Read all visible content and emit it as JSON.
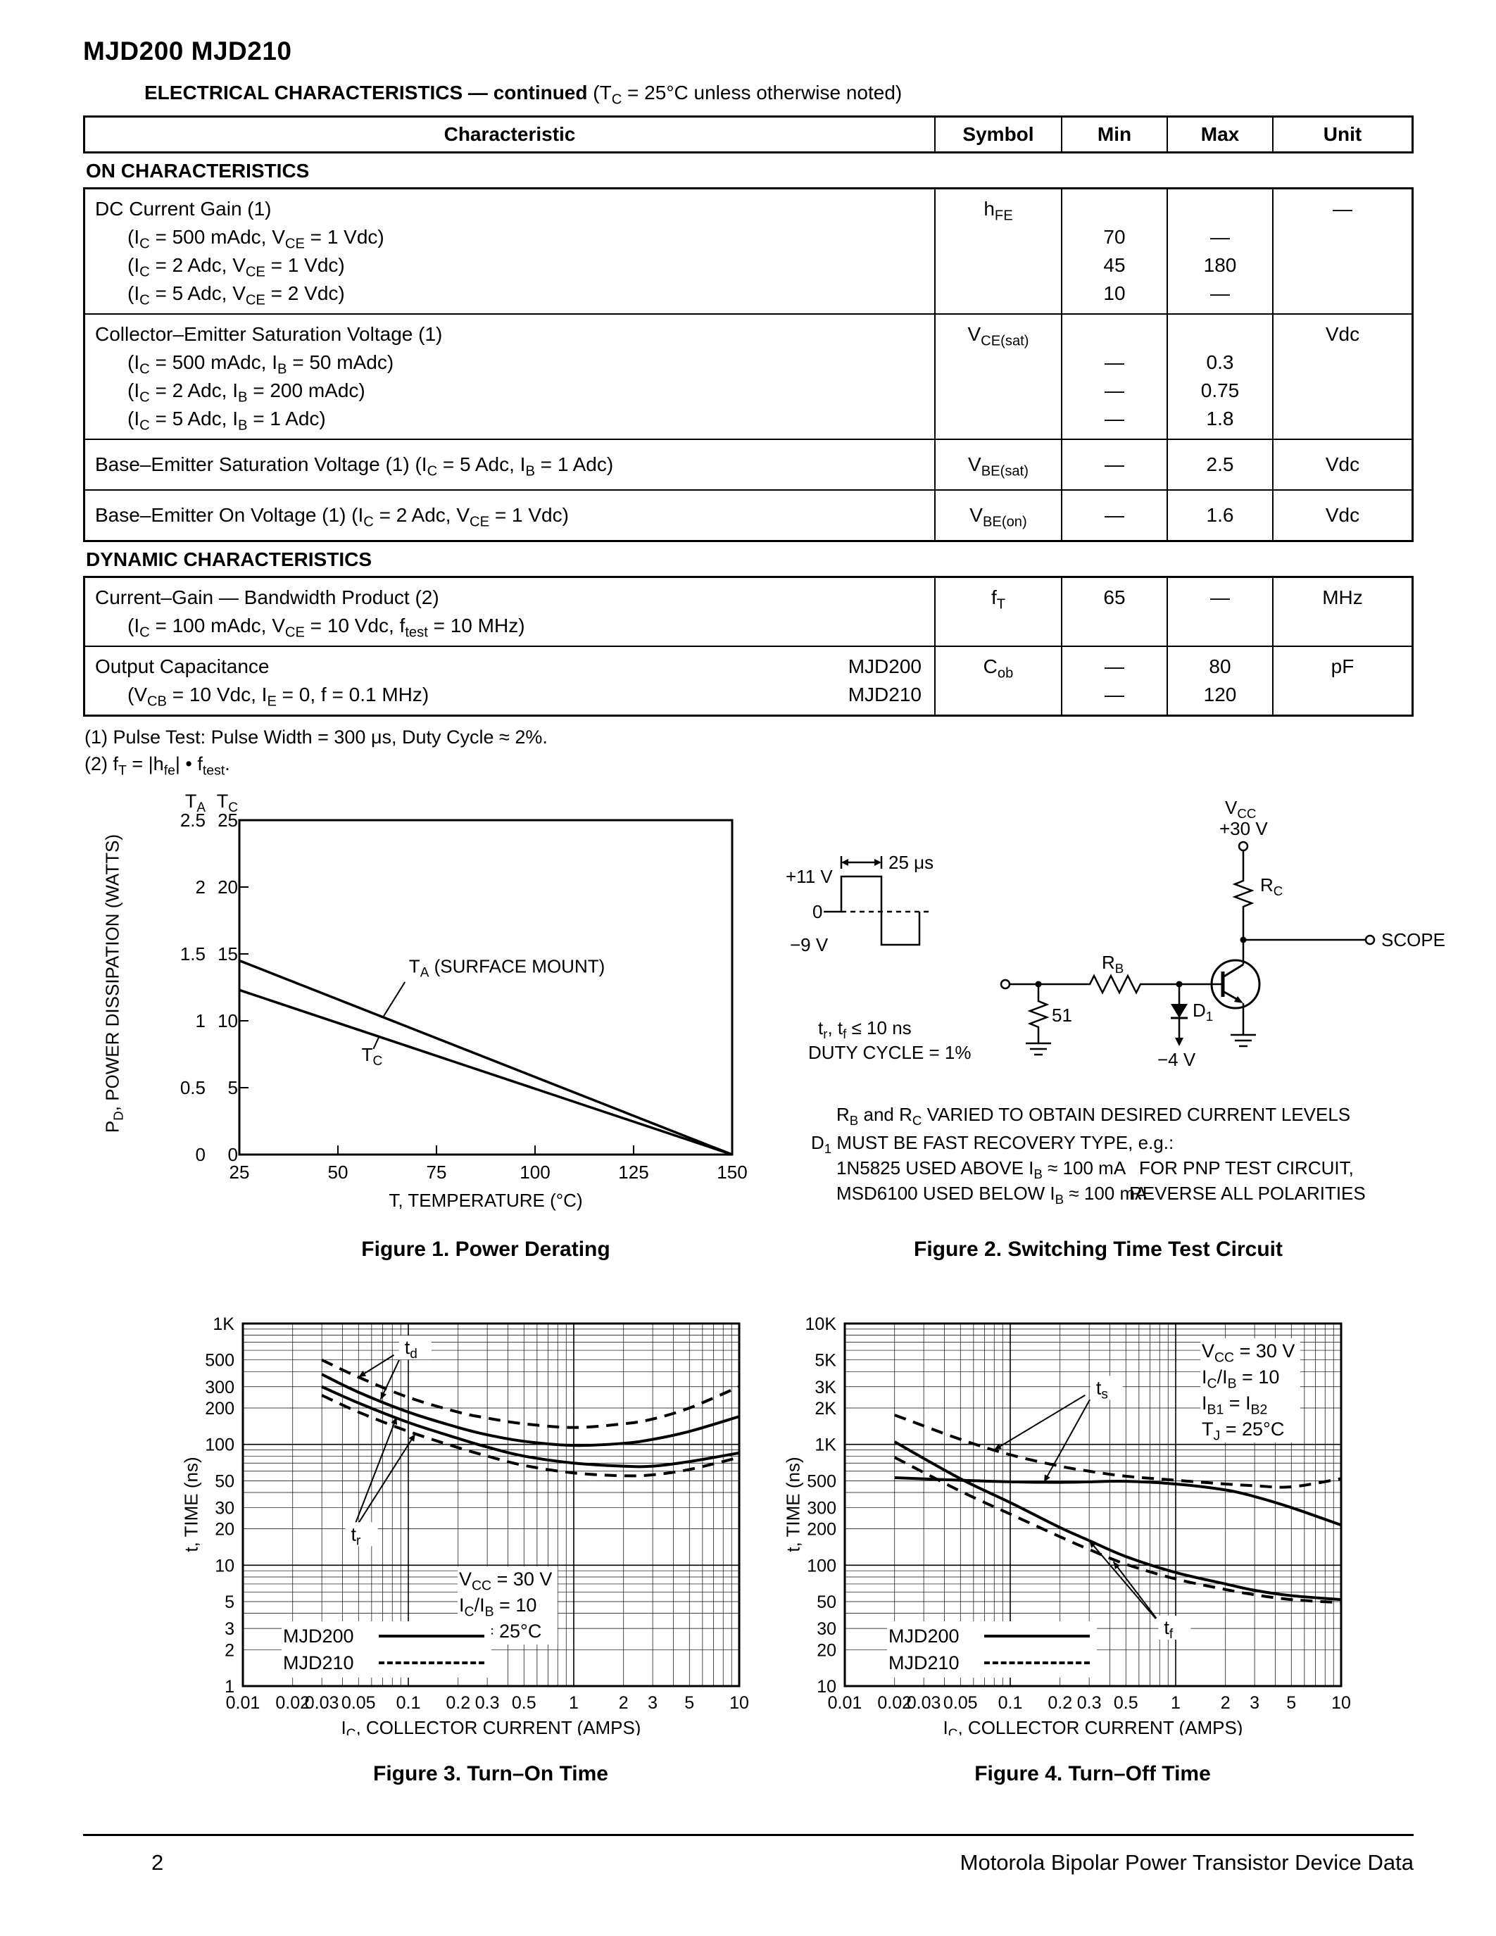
{
  "page": {
    "title": "MJD200 MJD210",
    "footer": {
      "page_number": "2",
      "right_text": "Motorola Bipolar Power Transistor Device Data"
    }
  },
  "electrical": {
    "heading_bold": "ELECTRICAL CHARACTERISTICS — continued",
    "heading_normal": " (T~C~ = 25°C unless otherwise noted)",
    "headers": [
      "Characteristic",
      "Symbol",
      "Min",
      "Max",
      "Unit"
    ],
    "sections": [
      {
        "title": "ON CHARACTERISTICS",
        "rows": [
          {
            "indent": true,
            "char_lines": [
              "DC Current Gain (1)",
              "(I~C~ = 500 mAdc, V~CE~ = 1 Vdc)",
              "(I~C~ = 2 Adc, V~CE~ = 1 Vdc)",
              "(I~C~ = 5 Adc, V~CE~ = 2 Vdc)"
            ],
            "symbol": "h~FE~",
            "min_lines": [
              "",
              "70",
              "45",
              "10"
            ],
            "max_lines": [
              "",
              "—",
              "180",
              "—"
            ],
            "unit_lines": [
              "—"
            ]
          },
          {
            "indent": true,
            "char_lines": [
              "Collector–Emitter Saturation Voltage (1)",
              "(I~C~ = 500 mAdc, I~B~ = 50 mAdc)",
              "(I~C~ = 2 Adc, I~B~ = 200 mAdc)",
              "(I~C~ = 5 Adc, I~B~ = 1 Adc)"
            ],
            "symbol": "V~CE(sat)~",
            "min_lines": [
              "",
              "—",
              "—",
              "—"
            ],
            "max_lines": [
              "",
              "0.3",
              "0.75",
              "1.8"
            ],
            "unit_lines": [
              "Vdc"
            ]
          },
          {
            "single": true,
            "char_lines": [
              "Base–Emitter Saturation Voltage (1) (I~C~ = 5 Adc, I~B~ = 1 Adc)"
            ],
            "symbol": "V~BE(sat)~",
            "min_lines": [
              "—"
            ],
            "max_lines": [
              "2.5"
            ],
            "unit_lines": [
              "Vdc"
            ]
          },
          {
            "single": true,
            "char_lines": [
              "Base–Emitter On Voltage (1) (I~C~ = 2 Adc, V~CE~ = 1 Vdc)"
            ],
            "symbol": "V~BE(on)~",
            "min_lines": [
              "—"
            ],
            "max_lines": [
              "1.6"
            ],
            "unit_lines": [
              "Vdc"
            ]
          }
        ]
      },
      {
        "title": "DYNAMIC CHARACTERISTICS",
        "rows": [
          {
            "indent": true,
            "char_lines": [
              "Current–Gain — Bandwidth Product (2)",
              "(I~C~ = 100 mAdc, V~CE~ = 10 Vdc, f~test~ = 10 MHz)"
            ],
            "symbol": "f~T~",
            "min_lines": [
              "65"
            ],
            "max_lines": [
              "—"
            ],
            "unit_lines": [
              "MHz"
            ]
          },
          {
            "indent": true,
            "char_lines": [
              "Output Capacitance",
              "(V~CB~ = 10 Vdc, I~E~ = 0, f = 0.1 MHz)"
            ],
            "char_right": [
              "MJD200",
              "MJD210"
            ],
            "symbol": "C~ob~",
            "min_lines": [
              "—",
              "—"
            ],
            "max_lines": [
              "80",
              "120"
            ],
            "unit_lines": [
              "pF"
            ]
          }
        ]
      }
    ],
    "footnotes": [
      "(1)  Pulse Test: Pulse Width = 300 μs, Duty Cycle ≈ 2%.",
      "(2)  f~T~ = |h~fe~| • f~test~."
    ]
  },
  "figures": {
    "fig2": {
      "caption": "Figure 2. Switching Time Test Circuit",
      "labels": {
        "plus11v": "+11 V",
        "zero": "0",
        "neg9v": "−9 V",
        "pulse_width": "25 μs",
        "trtf": "t~r~, t~f~ ≤ 10 ns",
        "duty": "DUTY CYCLE = 1%",
        "rb": "R~B~",
        "r51": "51",
        "d1": "D~1~",
        "neg4v": "−4 V",
        "vcc": "V~CC~",
        "vcc_value": "+30 V",
        "rc": "R~C~",
        "scope": "SCOPE"
      },
      "notes": [
        "R~B~ and R~C~ VARIED TO OBTAIN DESIRED CURRENT LEVELS",
        "D~1~ MUST BE FAST RECOVERY TYPE, e.g.:",
        "1N5825 USED ABOVE I~B~ ≈ 100 mA",
        "MSD6100 USED BELOW I~B~ ≈ 100 mA"
      ],
      "pnp_note": [
        "FOR PNP TEST CIRCUIT,",
        "REVERSE ALL POLARITIES"
      ]
    }
  },
  "chart_data": [
    {
      "id": "fig1",
      "type": "line",
      "caption": "Figure 1. Power Derating",
      "xlabel": "T, TEMPERATURE (°C)",
      "ylabel": "P~D~, POWER DISSIPATION (WATTS)",
      "xlim": [
        25,
        150
      ],
      "x_ticks": [
        25,
        50,
        75,
        100,
        125,
        150
      ],
      "ylim_grid": [
        0,
        25
      ],
      "grid": false,
      "y_axes": [
        {
          "name": "T~A~",
          "ticks": [
            "2.5",
            "2",
            "1.5",
            "1",
            "0.5",
            "0"
          ]
        },
        {
          "name": "T~C~",
          "ticks": [
            "25",
            "20",
            "15",
            "10",
            "5",
            "0"
          ]
        }
      ],
      "series": [
        {
          "id": "ta-surface-mount",
          "name": "T~A~ (SURFACE MOUNT)",
          "axis": "T_A (watts)",
          "grid_scale": 10,
          "style": "solid",
          "points": [
            [
              25,
              1.45
            ],
            [
              150,
              0
            ]
          ]
        },
        {
          "id": "tc",
          "name": "T~C~",
          "axis": "T_C (watts)",
          "grid_scale": 1,
          "style": "solid",
          "points": [
            [
              25,
              12.3
            ],
            [
              150,
              0
            ]
          ]
        }
      ],
      "labels": [
        {
          "text": "T~A~ (SURFACE MOUNT)",
          "at": [
            68,
            13.6
          ],
          "leader": [
            [
              67,
              12.9
            ],
            [
              61.5,
              10.3
            ]
          ]
        },
        {
          "text": "T~C~",
          "at": [
            56,
            7.0
          ],
          "leader": [
            [
              59,
              7.9
            ],
            [
              60.5,
              8.85
            ]
          ]
        }
      ]
    },
    {
      "id": "fig3",
      "type": "line",
      "xscale": "log",
      "yscale": "log",
      "caption": "Figure 3. Turn–On Time",
      "xlabel": "I~C~, COLLECTOR CURRENT (AMPS)",
      "ylabel": "t, TIME (ns)",
      "xlim": [
        0.01,
        10
      ],
      "ylim": [
        1,
        1000
      ],
      "grid": true,
      "x_ticks": [
        [
          0.01,
          "0.01"
        ],
        [
          0.02,
          "0.02"
        ],
        [
          0.03,
          "0.03"
        ],
        [
          0.05,
          "0.05"
        ],
        [
          0.1,
          "0.1"
        ],
        [
          0.2,
          "0.2"
        ],
        [
          0.3,
          "0.3"
        ],
        [
          0.5,
          "0.5"
        ],
        [
          1,
          "1"
        ],
        [
          2,
          "2"
        ],
        [
          3,
          "3"
        ],
        [
          5,
          "5"
        ],
        [
          10,
          "10"
        ]
      ],
      "y_ticks": [
        [
          1,
          "1"
        ],
        [
          2,
          "2"
        ],
        [
          3,
          "3"
        ],
        [
          5,
          "5"
        ],
        [
          10,
          "10"
        ],
        [
          20,
          "20"
        ],
        [
          30,
          "30"
        ],
        [
          50,
          "50"
        ],
        [
          100,
          "100"
        ],
        [
          200,
          "200"
        ],
        [
          300,
          "300"
        ],
        [
          500,
          "500"
        ],
        [
          1000,
          "1K"
        ]
      ],
      "conditions": [
        "V~CC~ = 30 V",
        "I~C~/I~B~ = 10",
        "T~J~ = 25°C"
      ],
      "legend": [
        {
          "label": "MJD200",
          "style": "solid"
        },
        {
          "label": "MJD210",
          "style": "dashed"
        }
      ],
      "series": [
        {
          "id": "td-mjd210",
          "name": "t_d MJD210",
          "style": "dashed",
          "points": [
            [
              0.03,
              500
            ],
            [
              0.05,
              360
            ],
            [
              0.1,
              245
            ],
            [
              0.2,
              185
            ],
            [
              0.3,
              165
            ],
            [
              0.5,
              148
            ],
            [
              1,
              138
            ],
            [
              2,
              148
            ],
            [
              3,
              162
            ],
            [
              5,
              200
            ],
            [
              10,
              300
            ]
          ]
        },
        {
          "id": "td-mjd200",
          "name": "t_d MJD200",
          "style": "solid",
          "points": [
            [
              0.03,
              380
            ],
            [
              0.05,
              270
            ],
            [
              0.1,
              185
            ],
            [
              0.2,
              138
            ],
            [
              0.3,
              120
            ],
            [
              0.5,
              106
            ],
            [
              1,
              98
            ],
            [
              2,
              102
            ],
            [
              3,
              110
            ],
            [
              5,
              128
            ],
            [
              10,
              170
            ]
          ]
        },
        {
          "id": "tr-mjd200",
          "name": "t_r MJD200",
          "style": "solid",
          "points": [
            [
              0.03,
              300
            ],
            [
              0.05,
              220
            ],
            [
              0.1,
              152
            ],
            [
              0.2,
              112
            ],
            [
              0.3,
              95
            ],
            [
              0.5,
              80
            ],
            [
              1,
              70
            ],
            [
              2,
              66
            ],
            [
              3,
              66
            ],
            [
              5,
              72
            ],
            [
              10,
              85
            ]
          ]
        },
        {
          "id": "tr-mjd210",
          "name": "t_r MJD210",
          "style": "dashed",
          "points": [
            [
              0.03,
              255
            ],
            [
              0.05,
              185
            ],
            [
              0.1,
              128
            ],
            [
              0.2,
              94
            ],
            [
              0.3,
              80
            ],
            [
              0.5,
              67
            ],
            [
              1,
              58
            ],
            [
              2,
              55
            ],
            [
              3,
              56
            ],
            [
              5,
              62
            ],
            [
              10,
              78
            ]
          ]
        }
      ],
      "labels": [
        {
          "text": "t~d~",
          "at": [
            0.095,
            560
          ],
          "arrows": [
            [
              0.05,
              360
            ],
            [
              0.068,
              235
            ]
          ]
        },
        {
          "text": "t~r~",
          "at": [
            0.045,
            16
          ],
          "arrows": [
            [
              0.085,
              168
            ],
            [
              0.11,
              122
            ]
          ]
        }
      ]
    },
    {
      "id": "fig4",
      "type": "line",
      "xscale": "log",
      "yscale": "log",
      "caption": "Figure 4. Turn–Off Time",
      "xlabel": "I~C~, COLLECTOR CURRENT (AMPS)",
      "ylabel": "t, TIME (ns)",
      "xlim": [
        0.01,
        10
      ],
      "ylim": [
        10,
        10000
      ],
      "grid": true,
      "x_ticks": [
        [
          0.01,
          "0.01"
        ],
        [
          0.02,
          "0.02"
        ],
        [
          0.03,
          "0.03"
        ],
        [
          0.05,
          "0.05"
        ],
        [
          0.1,
          "0.1"
        ],
        [
          0.2,
          "0.2"
        ],
        [
          0.3,
          "0.3"
        ],
        [
          0.5,
          "0.5"
        ],
        [
          1,
          "1"
        ],
        [
          2,
          "2"
        ],
        [
          3,
          "3"
        ],
        [
          5,
          "5"
        ],
        [
          10,
          "10"
        ]
      ],
      "y_ticks": [
        [
          10,
          "10"
        ],
        [
          20,
          "20"
        ],
        [
          30,
          "30"
        ],
        [
          50,
          "50"
        ],
        [
          100,
          "100"
        ],
        [
          200,
          "200"
        ],
        [
          300,
          "300"
        ],
        [
          500,
          "500"
        ],
        [
          1000,
          "1K"
        ],
        [
          2000,
          "2K"
        ],
        [
          3000,
          "3K"
        ],
        [
          5000,
          "5K"
        ],
        [
          10000,
          "10K"
        ]
      ],
      "conditions": [
        "V~CC~ = 30 V",
        "I~C~/I~B~ = 10",
        "I~B1~ = I~B2~",
        "T~J~ = 25°C"
      ],
      "legend": [
        {
          "label": "MJD200",
          "style": "solid"
        },
        {
          "label": "MJD210",
          "style": "dashed"
        }
      ],
      "series": [
        {
          "id": "ts-mjd210",
          "name": "t_s MJD210",
          "style": "dashed",
          "points": [
            [
              0.02,
              1750
            ],
            [
              0.05,
              1100
            ],
            [
              0.1,
              820
            ],
            [
              0.2,
              660
            ],
            [
              0.3,
              600
            ],
            [
              0.5,
              545
            ],
            [
              1,
              505
            ],
            [
              2,
              470
            ],
            [
              3,
              455
            ],
            [
              5,
              445
            ],
            [
              10,
              520
            ]
          ]
        },
        {
          "id": "ts-mjd200",
          "name": "t_s MJD200",
          "style": "solid",
          "points": [
            [
              0.02,
              530
            ],
            [
              0.05,
              505
            ],
            [
              0.1,
              490
            ],
            [
              0.2,
              485
            ],
            [
              0.3,
              490
            ],
            [
              0.5,
              495
            ],
            [
              1,
              470
            ],
            [
              2,
              420
            ],
            [
              3,
              370
            ],
            [
              5,
              300
            ],
            [
              10,
              215
            ]
          ]
        },
        {
          "id": "tf-mjd200",
          "name": "t_f MJD200",
          "style": "solid",
          "points": [
            [
              0.02,
              1050
            ],
            [
              0.05,
              520
            ],
            [
              0.1,
              330
            ],
            [
              0.2,
              205
            ],
            [
              0.3,
              160
            ],
            [
              0.5,
              118
            ],
            [
              1,
              87
            ],
            [
              2,
              70
            ],
            [
              3,
              62
            ],
            [
              5,
              56
            ],
            [
              10,
              52
            ]
          ]
        },
        {
          "id": "tf-mjd210",
          "name": "t_f MJD210",
          "style": "dashed",
          "points": [
            [
              0.02,
              780
            ],
            [
              0.05,
              410
            ],
            [
              0.1,
              265
            ],
            [
              0.2,
              172
            ],
            [
              0.3,
              135
            ],
            [
              0.5,
              102
            ],
            [
              1,
              77
            ],
            [
              2,
              63
            ],
            [
              3,
              57
            ],
            [
              5,
              52
            ],
            [
              10,
              49
            ]
          ]
        }
      ],
      "labels": [
        {
          "text": "t~s~",
          "at": [
            0.33,
            2600
          ],
          "arrows": [
            [
              0.08,
              900
            ],
            [
              0.16,
              487
            ]
          ]
        },
        {
          "text": "t~f~",
          "at": [
            0.85,
            27
          ],
          "arrows": [
            [
              0.3,
              160
            ],
            [
              0.42,
              107
            ]
          ]
        }
      ]
    }
  ]
}
